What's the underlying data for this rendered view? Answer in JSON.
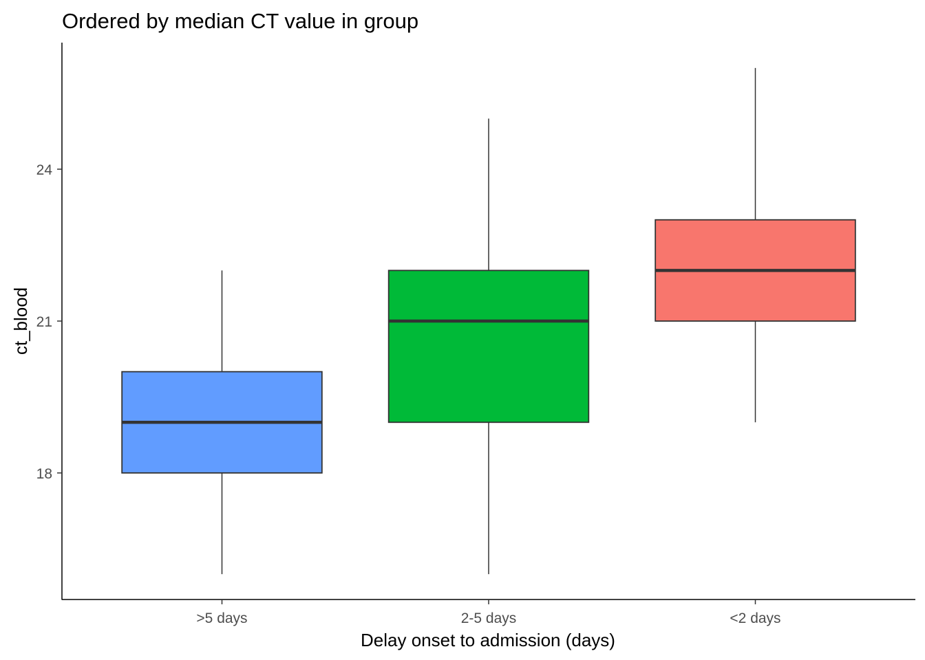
{
  "chart_data": {
    "type": "boxplot",
    "title": "Ordered by median CT value in group",
    "xlabel": "Delay onset to admission (days)",
    "ylabel": "ct_blood",
    "categories": [
      ">5 days",
      "2-5 days",
      "<2 days"
    ],
    "boxes": [
      {
        "category": ">5 days",
        "whisker_low": 16,
        "q1": 18,
        "median": 19,
        "q3": 20,
        "whisker_high": 22,
        "color": "#619CFF"
      },
      {
        "category": "2-5 days",
        "whisker_low": 16,
        "q1": 19,
        "median": 21,
        "q3": 22,
        "whisker_high": 25,
        "color": "#00BA38"
      },
      {
        "category": "<2 days",
        "whisker_low": 19,
        "q1": 21,
        "median": 22,
        "q3": 23,
        "whisker_high": 26,
        "color": "#F8766D"
      }
    ],
    "y_ticks": [
      "18",
      "21",
      "24"
    ],
    "y_tick_values": [
      18,
      21,
      24
    ],
    "ylim": [
      15.5,
      26.5
    ],
    "grid": false,
    "legend": "none"
  }
}
